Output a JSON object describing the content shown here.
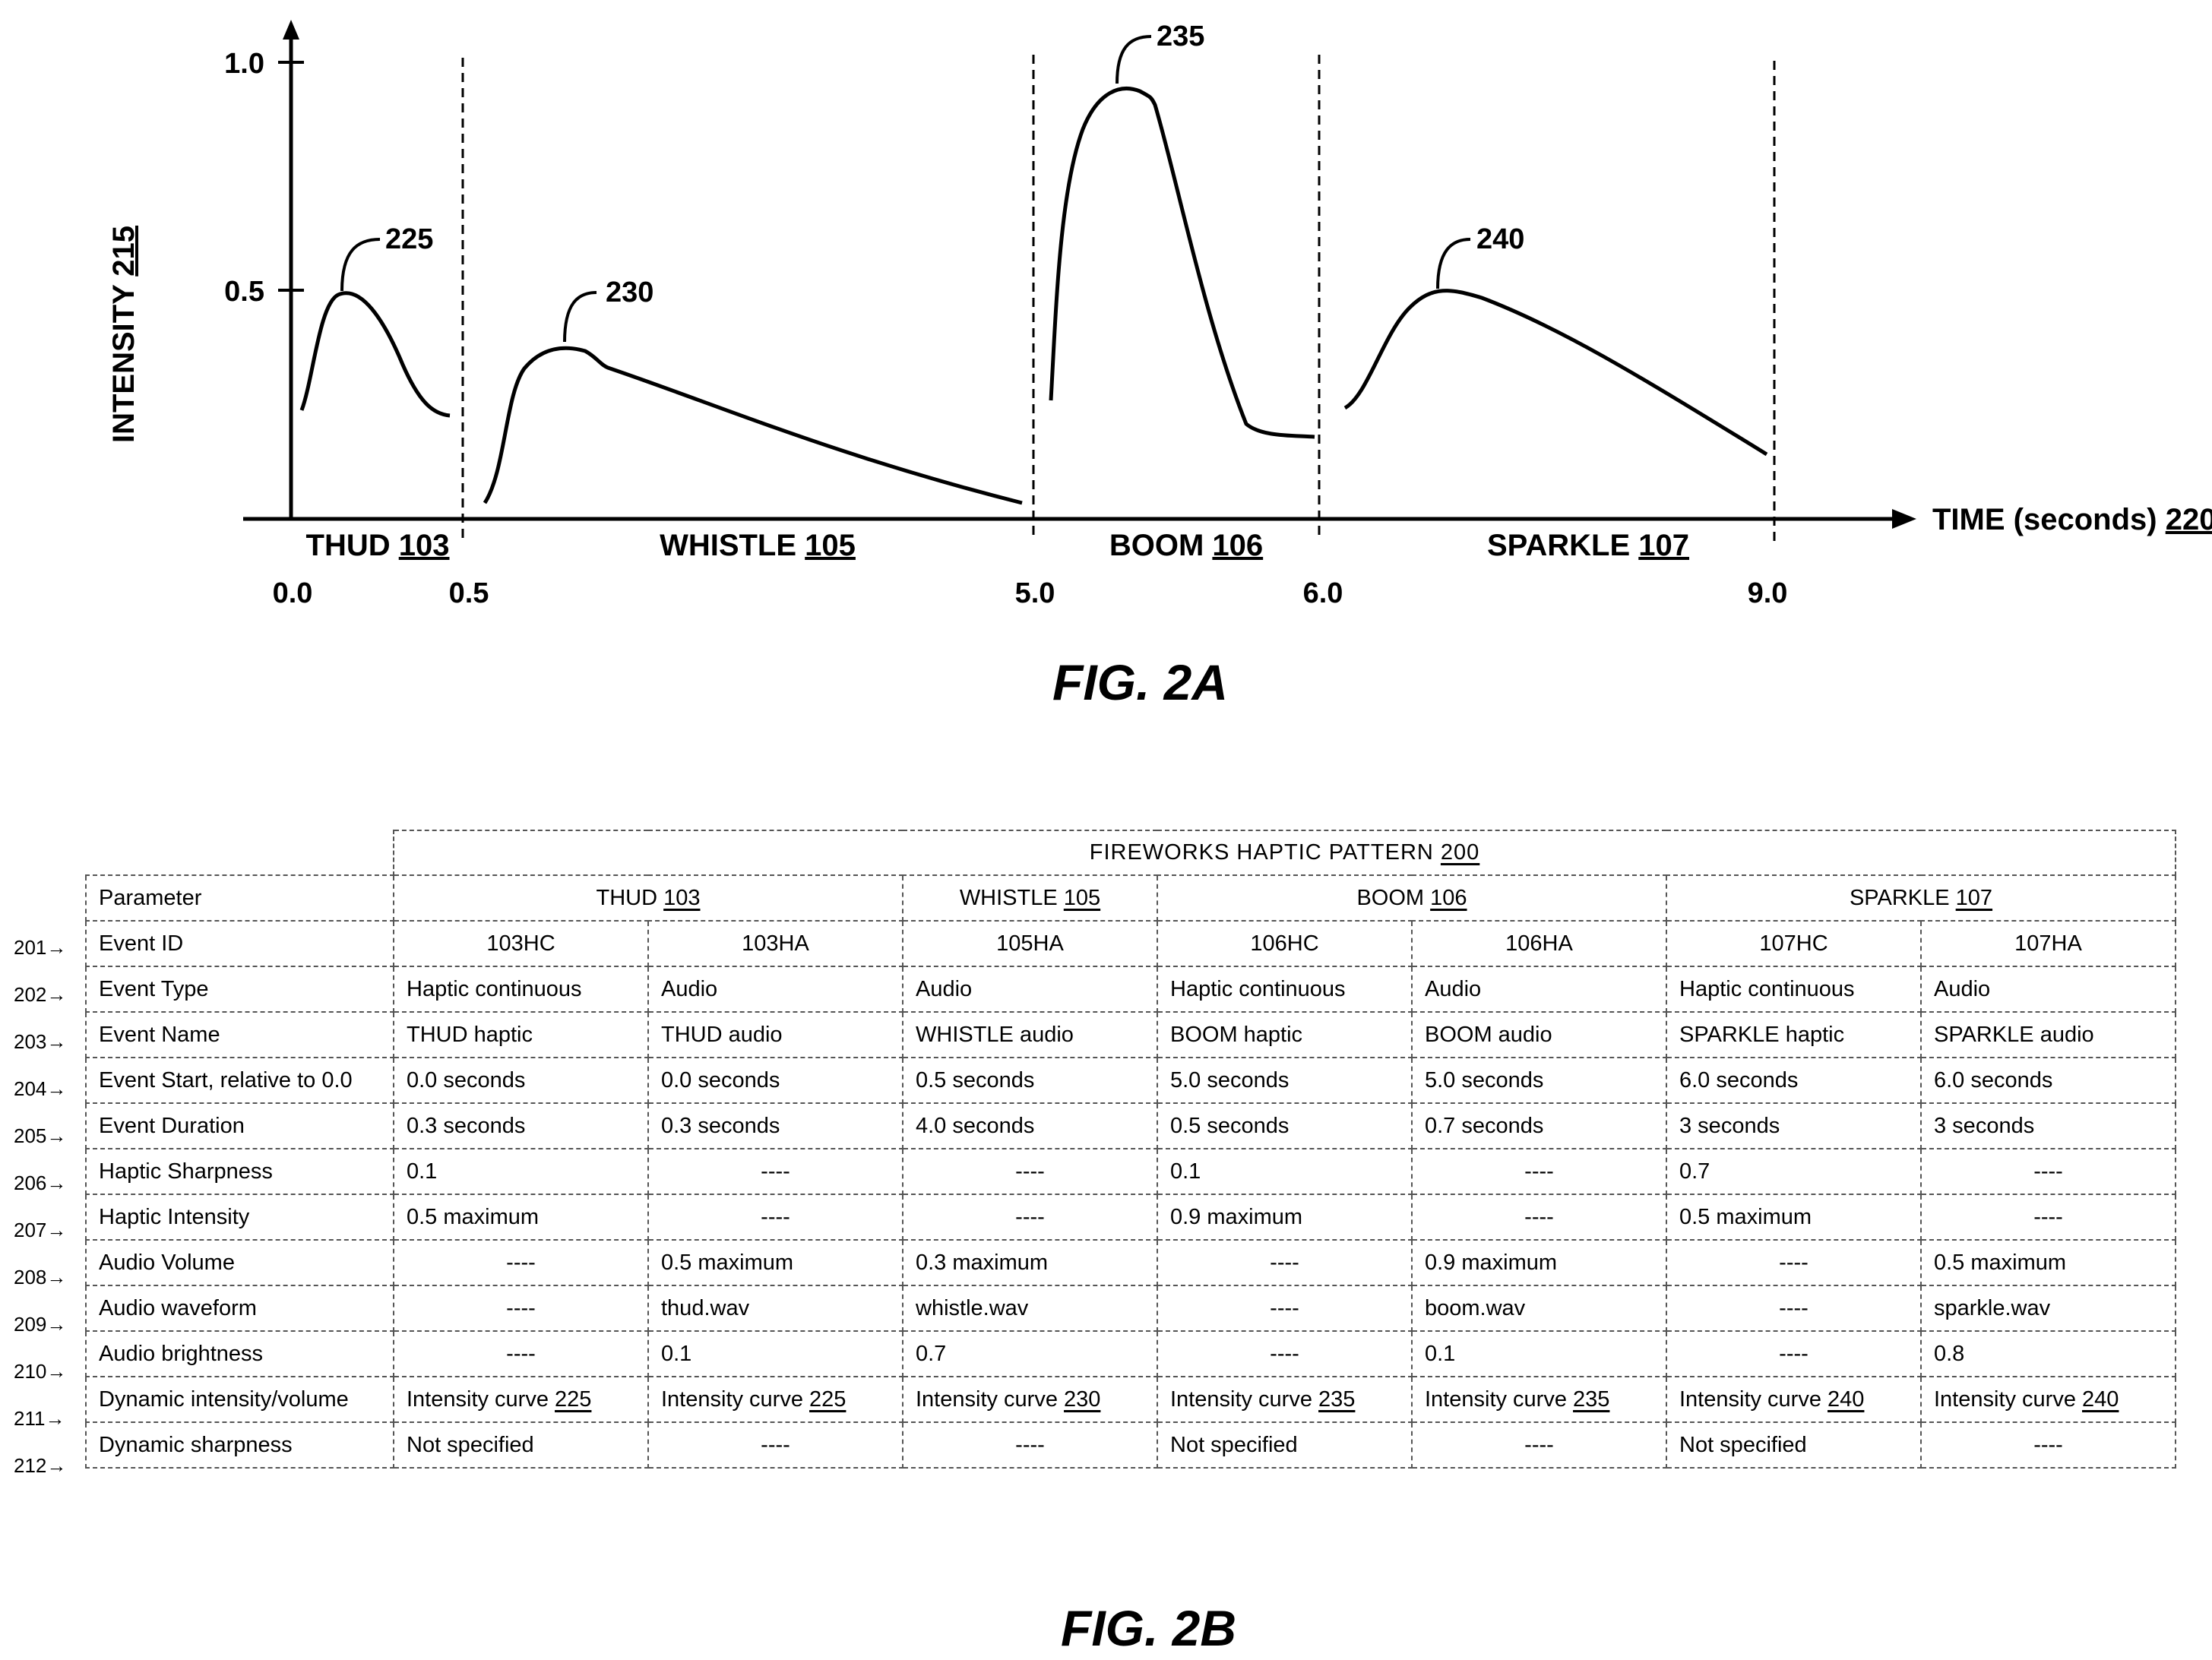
{
  "fig2a": {
    "caption": "FIG. 2A",
    "y_axis_label": "INTENSITY",
    "y_axis_ref": "215",
    "x_axis_label": "TIME (seconds)",
    "x_axis_ref": "220",
    "y_ticks": [
      "1.0",
      "0.5"
    ],
    "x_ticks": [
      "0.0",
      "0.5",
      "5.0",
      "6.0",
      "9.0"
    ],
    "segments": [
      {
        "name": "THUD",
        "ref": "103"
      },
      {
        "name": "WHISTLE",
        "ref": "105"
      },
      {
        "name": "BOOM",
        "ref": "106"
      },
      {
        "name": "SPARKLE",
        "ref": "107"
      }
    ],
    "curve_refs": [
      "225",
      "230",
      "235",
      "240"
    ]
  },
  "chart_data": {
    "type": "line",
    "xlabel": "TIME (seconds) 220",
    "ylabel": "INTENSITY 215",
    "xlim": [
      0,
      9.0
    ],
    "ylim": [
      0,
      1.0
    ],
    "grid": false,
    "series": [
      {
        "name": "225",
        "peak": 0.5,
        "points": [
          [
            0.05,
            0.24
          ],
          [
            0.15,
            0.44
          ],
          [
            0.25,
            0.5
          ],
          [
            0.35,
            0.42
          ],
          [
            0.5,
            0.22
          ]
        ]
      },
      {
        "name": "230",
        "peak": 0.37,
        "points": [
          [
            0.55,
            0.04
          ],
          [
            0.8,
            0.33
          ],
          [
            1.1,
            0.37
          ],
          [
            1.5,
            0.33
          ],
          [
            3.0,
            0.2
          ],
          [
            5.0,
            0.03
          ]
        ]
      },
      {
        "name": "235",
        "peak": 0.94,
        "points": [
          [
            5.1,
            0.26
          ],
          [
            5.3,
            0.87
          ],
          [
            5.55,
            0.94
          ],
          [
            5.7,
            0.9
          ],
          [
            5.95,
            0.26
          ],
          [
            6.15,
            0.18
          ],
          [
            6.45,
            0.17
          ]
        ]
      },
      {
        "name": "240",
        "peak": 0.5,
        "points": [
          [
            6.1,
            0.24
          ],
          [
            6.4,
            0.44
          ],
          [
            6.7,
            0.5
          ],
          [
            7.8,
            0.36
          ],
          [
            8.9,
            0.14
          ]
        ]
      }
    ]
  },
  "fig2b": {
    "caption": "FIG. 2B",
    "title": "FIREWORKS HAPTIC PATTERN",
    "title_ref": "200",
    "param_header": "Parameter",
    "groups": [
      {
        "name": "THUD",
        "ref": "103"
      },
      {
        "name": "WHISTLE",
        "ref": "105"
      },
      {
        "name": "BOOM",
        "ref": "106"
      },
      {
        "name": "SPARKLE",
        "ref": "107"
      }
    ],
    "rows": [
      {
        "ref": "201",
        "param": "Event ID",
        "center": true,
        "cells": [
          "103HC",
          "103HA",
          "105HA",
          "106HC",
          "106HA",
          "107HC",
          "107HA"
        ]
      },
      {
        "ref": "202",
        "param": "Event Type",
        "cells": [
          "Haptic continuous",
          "Audio",
          "Audio",
          "Haptic continuous",
          "Audio",
          "Haptic continuous",
          "Audio"
        ]
      },
      {
        "ref": "203",
        "param": "Event Name",
        "cells": [
          "THUD haptic",
          "THUD audio",
          "WHISTLE audio",
          "BOOM haptic",
          "BOOM audio",
          "SPARKLE haptic",
          "SPARKLE audio"
        ]
      },
      {
        "ref": "204",
        "param": "Event Start, relative to 0.0",
        "cells": [
          "0.0 seconds",
          "0.0 seconds",
          "0.5 seconds",
          "5.0 seconds",
          "5.0 seconds",
          "6.0 seconds",
          "6.0 seconds"
        ]
      },
      {
        "ref": "205",
        "param": "Event Duration",
        "cells": [
          "0.3 seconds",
          "0.3 seconds",
          "4.0 seconds",
          "0.5 seconds",
          "0.7 seconds",
          "3 seconds",
          "3 seconds"
        ]
      },
      {
        "ref": "206",
        "param": "Haptic Sharpness",
        "cells": [
          "0.1",
          "----",
          "----",
          "0.1",
          "----",
          "0.7",
          "----"
        ]
      },
      {
        "ref": "207",
        "param": "Haptic Intensity",
        "cells": [
          "0.5 maximum",
          "----",
          "----",
          "0.9 maximum",
          "----",
          "0.5 maximum",
          "----"
        ]
      },
      {
        "ref": "208",
        "param": "Audio Volume",
        "cells": [
          "----",
          "0.5 maximum",
          "0.3 maximum",
          "----",
          "0.9 maximum",
          "----",
          "0.5 maximum"
        ]
      },
      {
        "ref": "209",
        "param": "Audio waveform",
        "cells": [
          "----",
          "thud.wav",
          "whistle.wav",
          "----",
          "boom.wav",
          "----",
          "sparkle.wav"
        ]
      },
      {
        "ref": "210",
        "param": "Audio brightness",
        "cells": [
          "----",
          "0.1",
          "0.7",
          "----",
          "0.1",
          "----",
          "0.8"
        ]
      },
      {
        "ref": "211",
        "param": "Dynamic intensity/volume",
        "cells": [
          [
            "Intensity curve ",
            "225"
          ],
          [
            "Intensity curve ",
            "225"
          ],
          [
            "Intensity curve ",
            "230"
          ],
          [
            "Intensity curve ",
            "235"
          ],
          [
            "Intensity curve ",
            "235"
          ],
          [
            "Intensity curve ",
            "240"
          ],
          [
            "Intensity curve ",
            "240"
          ]
        ]
      },
      {
        "ref": "212",
        "param": "Dynamic sharpness",
        "cells": [
          "Not specified",
          "----",
          "----",
          "Not specified",
          "----",
          "Not specified",
          "----"
        ]
      }
    ]
  }
}
